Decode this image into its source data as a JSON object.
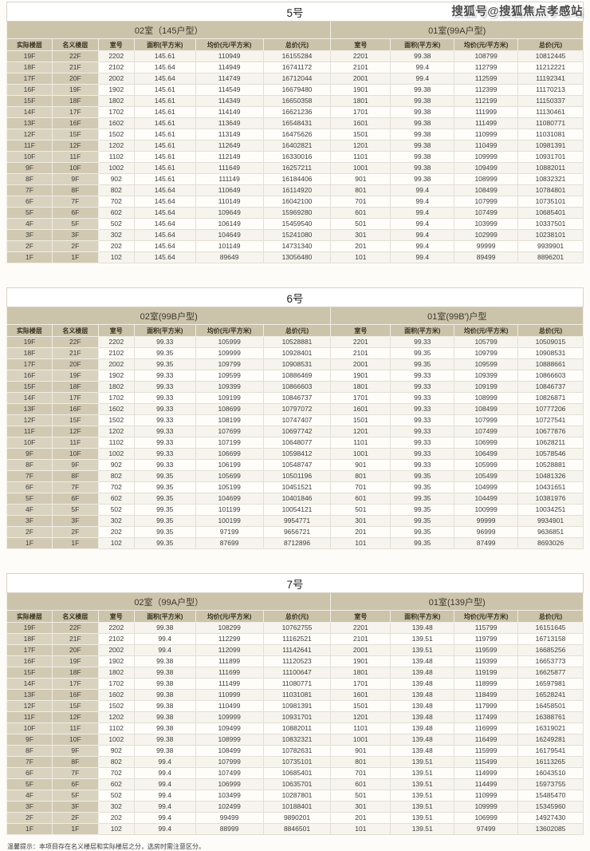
{
  "watermark": "搜狐号@搜狐焦点孝感站",
  "note": "温馨提示：本项目存在名义楼层和实际楼层之分，选房时需注意区分。",
  "colors": {
    "header_tan": "#ccc3ab",
    "floor_tan": "#d2c9b3",
    "row_white": "#fefdfa",
    "row_alt": "#f6f4ed",
    "border": "#e2dfd4"
  },
  "columns": [
    "实际楼层",
    "名义楼层",
    "室号",
    "面积(平方米)",
    "均价(元/平方米)",
    "总价(元)",
    "室号",
    "面积(平方米)",
    "均价(元/平方米)",
    "总价(元)"
  ],
  "tables": [
    {
      "title": "5号",
      "group_left": "02室（145户型）",
      "group_right": "01室(99A户型)",
      "rows": [
        [
          "19F",
          "22F",
          "2202",
          "145.61",
          "110949",
          "16155284",
          "2201",
          "99.38",
          "108799",
          "10812445"
        ],
        [
          "18F",
          "21F",
          "2102",
          "145.64",
          "114949",
          "16741172",
          "2101",
          "99.4",
          "112799",
          "11212221"
        ],
        [
          "17F",
          "20F",
          "2002",
          "145.64",
          "114749",
          "16712044",
          "2001",
          "99.4",
          "112599",
          "11192341"
        ],
        [
          "16F",
          "19F",
          "1902",
          "145.61",
          "114549",
          "16679480",
          "1901",
          "99.38",
          "112399",
          "11170213"
        ],
        [
          "15F",
          "18F",
          "1802",
          "145.61",
          "114349",
          "16650358",
          "1801",
          "99.38",
          "112199",
          "11150337"
        ],
        [
          "14F",
          "17F",
          "1702",
          "145.61",
          "114149",
          "16621236",
          "1701",
          "99.38",
          "111999",
          "11130461"
        ],
        [
          "13F",
          "16F",
          "1602",
          "145.61",
          "113649",
          "16548431",
          "1601",
          "99.38",
          "111499",
          "11080771"
        ],
        [
          "12F",
          "15F",
          "1502",
          "145.61",
          "113149",
          "16475626",
          "1501",
          "99.38",
          "110999",
          "11031081"
        ],
        [
          "11F",
          "12F",
          "1202",
          "145.61",
          "112649",
          "16402821",
          "1201",
          "99.38",
          "110499",
          "10981391"
        ],
        [
          "10F",
          "11F",
          "1102",
          "145.61",
          "112149",
          "16330016",
          "1101",
          "99.38",
          "109999",
          "10931701"
        ],
        [
          "9F",
          "10F",
          "1002",
          "145.61",
          "111649",
          "16257211",
          "1001",
          "99.38",
          "109499",
          "10882011"
        ],
        [
          "8F",
          "9F",
          "902",
          "145.61",
          "111149",
          "16184406",
          "901",
          "99.38",
          "108999",
          "10832321"
        ],
        [
          "7F",
          "8F",
          "802",
          "145.64",
          "110649",
          "16114920",
          "801",
          "99.4",
          "108499",
          "10784801"
        ],
        [
          "6F",
          "7F",
          "702",
          "145.64",
          "110149",
          "16042100",
          "701",
          "99.4",
          "107999",
          "10735101"
        ],
        [
          "5F",
          "6F",
          "602",
          "145.64",
          "109649",
          "15969280",
          "601",
          "99.4",
          "107499",
          "10685401"
        ],
        [
          "4F",
          "5F",
          "502",
          "145.64",
          "106149",
          "15459540",
          "501",
          "99.4",
          "103999",
          "10337501"
        ],
        [
          "3F",
          "3F",
          "302",
          "145.64",
          "104649",
          "15241080",
          "301",
          "99.4",
          "102999",
          "10238101"
        ],
        [
          "2F",
          "2F",
          "202",
          "145.64",
          "101149",
          "14731340",
          "201",
          "99.4",
          "99999",
          "9939901"
        ],
        [
          "1F",
          "1F",
          "102",
          "145.64",
          "89649",
          "13056480",
          "101",
          "99.4",
          "89499",
          "8896201"
        ]
      ]
    },
    {
      "title": "6号",
      "group_left": "02室(99B户型)",
      "group_right": "01室(99B')户型",
      "rows": [
        [
          "19F",
          "22F",
          "2202",
          "99.33",
          "105999",
          "10528881",
          "2201",
          "99.33",
          "105799",
          "10509015"
        ],
        [
          "18F",
          "21F",
          "2102",
          "99.35",
          "109999",
          "10928401",
          "2101",
          "99.35",
          "109799",
          "10908531"
        ],
        [
          "17F",
          "20F",
          "2002",
          "99.35",
          "109799",
          "10908531",
          "2001",
          "99.35",
          "109599",
          "10888661"
        ],
        [
          "16F",
          "19F",
          "1902",
          "99.33",
          "109599",
          "10886469",
          "1901",
          "99.33",
          "109399",
          "10866603"
        ],
        [
          "15F",
          "18F",
          "1802",
          "99.33",
          "109399",
          "10866603",
          "1801",
          "99.33",
          "109199",
          "10846737"
        ],
        [
          "14F",
          "17F",
          "1702",
          "99.33",
          "109199",
          "10846737",
          "1701",
          "99.33",
          "108999",
          "10826871"
        ],
        [
          "13F",
          "16F",
          "1602",
          "99.33",
          "108699",
          "10797072",
          "1601",
          "99.33",
          "108499",
          "10777206"
        ],
        [
          "12F",
          "15F",
          "1502",
          "99.33",
          "108199",
          "10747407",
          "1501",
          "99.33",
          "107999",
          "10727541"
        ],
        [
          "11F",
          "12F",
          "1202",
          "99.33",
          "107699",
          "10697742",
          "1201",
          "99.33",
          "107499",
          "10677876"
        ],
        [
          "10F",
          "11F",
          "1102",
          "99.33",
          "107199",
          "10648077",
          "1101",
          "99.33",
          "106999",
          "10628211"
        ],
        [
          "9F",
          "10F",
          "1002",
          "99.33",
          "106699",
          "10598412",
          "1001",
          "99.33",
          "106499",
          "10578546"
        ],
        [
          "8F",
          "9F",
          "902",
          "99.33",
          "106199",
          "10548747",
          "901",
          "99.33",
          "105999",
          "10528881"
        ],
        [
          "7F",
          "8F",
          "802",
          "99.35",
          "105699",
          "10501196",
          "801",
          "99.35",
          "105499",
          "10481326"
        ],
        [
          "6F",
          "7F",
          "702",
          "99.35",
          "105199",
          "10451521",
          "701",
          "99.35",
          "104999",
          "10431651"
        ],
        [
          "5F",
          "6F",
          "602",
          "99.35",
          "104699",
          "10401846",
          "601",
          "99.35",
          "104499",
          "10381976"
        ],
        [
          "4F",
          "5F",
          "502",
          "99.35",
          "101199",
          "10054121",
          "501",
          "99.35",
          "100999",
          "10034251"
        ],
        [
          "3F",
          "3F",
          "302",
          "99.35",
          "100199",
          "9954771",
          "301",
          "99.35",
          "99999",
          "9934901"
        ],
        [
          "2F",
          "2F",
          "202",
          "99.35",
          "97199",
          "9656721",
          "201",
          "99.35",
          "96999",
          "9636851"
        ],
        [
          "1F",
          "1F",
          "102",
          "99.35",
          "87699",
          "8712896",
          "101",
          "99.35",
          "87499",
          "8693026"
        ]
      ]
    },
    {
      "title": "7号",
      "group_left": "02室（99A户型）",
      "group_right": "01室(139户型)",
      "rows": [
        [
          "19F",
          "22F",
          "2202",
          "99.38",
          "108299",
          "10762755",
          "2201",
          "139.48",
          "115799",
          "16151645"
        ],
        [
          "18F",
          "21F",
          "2102",
          "99.4",
          "112299",
          "11162521",
          "2101",
          "139.51",
          "119799",
          "16713158"
        ],
        [
          "17F",
          "20F",
          "2002",
          "99.4",
          "112099",
          "11142641",
          "2001",
          "139.51",
          "119599",
          "16685256"
        ],
        [
          "16F",
          "19F",
          "1902",
          "99.38",
          "111899",
          "11120523",
          "1901",
          "139.48",
          "119399",
          "16653773"
        ],
        [
          "15F",
          "18F",
          "1802",
          "99.38",
          "111699",
          "11100647",
          "1801",
          "139.48",
          "119199",
          "16625877"
        ],
        [
          "14F",
          "17F",
          "1702",
          "99.38",
          "111499",
          "11080771",
          "1701",
          "139.48",
          "118999",
          "16597981"
        ],
        [
          "13F",
          "16F",
          "1602",
          "99.38",
          "110999",
          "11031081",
          "1601",
          "139.48",
          "118499",
          "16528241"
        ],
        [
          "12F",
          "15F",
          "1502",
          "99.38",
          "110499",
          "10981391",
          "1501",
          "139.48",
          "117999",
          "16458501"
        ],
        [
          "11F",
          "12F",
          "1202",
          "99.38",
          "109999",
          "10931701",
          "1201",
          "139.48",
          "117499",
          "16388761"
        ],
        [
          "10F",
          "11F",
          "1102",
          "99.38",
          "109499",
          "10882011",
          "1101",
          "139.48",
          "116999",
          "16319021"
        ],
        [
          "9F",
          "10F",
          "1002",
          "99.38",
          "108999",
          "10832321",
          "1001",
          "139.48",
          "116499",
          "16249281"
        ],
        [
          "8F",
          "9F",
          "902",
          "99.38",
          "108499",
          "10782631",
          "901",
          "139.48",
          "115999",
          "16179541"
        ],
        [
          "7F",
          "8F",
          "802",
          "99.4",
          "107999",
          "10735101",
          "801",
          "139.51",
          "115499",
          "16113265"
        ],
        [
          "6F",
          "7F",
          "702",
          "99.4",
          "107499",
          "10685401",
          "701",
          "139.51",
          "114999",
          "16043510"
        ],
        [
          "5F",
          "6F",
          "602",
          "99.4",
          "106999",
          "10635701",
          "601",
          "139.51",
          "114499",
          "15973755"
        ],
        [
          "4F",
          "5F",
          "502",
          "99.4",
          "103499",
          "10287801",
          "501",
          "139.51",
          "110999",
          "15485470"
        ],
        [
          "3F",
          "3F",
          "302",
          "99.4",
          "102499",
          "10188401",
          "301",
          "139.51",
          "109999",
          "15345960"
        ],
        [
          "2F",
          "2F",
          "202",
          "99.4",
          "99499",
          "9890201",
          "201",
          "139.51",
          "106999",
          "14927430"
        ],
        [
          "1F",
          "1F",
          "102",
          "99.4",
          "88999",
          "8846501",
          "101",
          "139.51",
          "97499",
          "13602085"
        ]
      ]
    }
  ]
}
